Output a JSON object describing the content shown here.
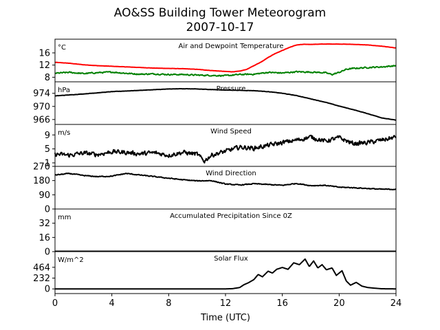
{
  "chart_data": {
    "type": "line",
    "title": "AO&SS Building Tower Meteorogram",
    "subtitle": "2007-10-17",
    "xlabel": "Time (UTC)",
    "xlim": [
      0,
      24
    ],
    "xticks": [
      0,
      4,
      8,
      12,
      16,
      20,
      24
    ],
    "panels": [
      {
        "name": "temperature",
        "title": "Air and Dewpoint Temperature",
        "unit": "°C",
        "ylim": [
          6.5,
          20.5
        ],
        "yticks": [
          8,
          12,
          16
        ],
        "series": [
          {
            "color": "#ff0000",
            "noise": 0.05,
            "x": [
              0,
              1,
              2,
              3,
              4,
              5,
              6,
              7,
              8,
              9,
              10,
              11,
              12,
              12.5,
              13,
              13.5,
              14,
              14.5,
              15,
              15.5,
              16,
              16.5,
              17,
              17.5,
              18,
              19,
              20,
              21,
              22,
              23,
              24
            ],
            "y": [
              12.9,
              12.6,
              12.1,
              11.8,
              11.6,
              11.4,
              11.2,
              11.0,
              10.9,
              10.8,
              10.6,
              10.2,
              9.9,
              9.8,
              10.0,
              10.6,
              11.8,
              13.0,
              14.5,
              15.8,
              16.8,
              17.8,
              18.6,
              18.8,
              18.8,
              18.9,
              18.9,
              18.8,
              18.6,
              18.2,
              17.6
            ]
          },
          {
            "color": "#008000",
            "noise": 0.3,
            "x": [
              0,
              1,
              2,
              3,
              4,
              5,
              6,
              7,
              8,
              9,
              10,
              11,
              12,
              13,
              14,
              15,
              16,
              17,
              18,
              19,
              19.5,
              20,
              20.5,
              21,
              22,
              23,
              24
            ],
            "y": [
              9.3,
              9.6,
              9.2,
              9.5,
              9.7,
              9.3,
              9.0,
              9.1,
              8.9,
              8.9,
              8.7,
              8.6,
              8.5,
              8.9,
              9.0,
              9.6,
              9.4,
              9.8,
              9.7,
              9.5,
              8.9,
              9.6,
              10.6,
              10.9,
              11.2,
              11.4,
              11.8
            ]
          }
        ]
      },
      {
        "name": "pressure",
        "title": "Pressure",
        "unit": "hPa",
        "ylim": [
          964.5,
          977.5
        ],
        "yticks": [
          966,
          970,
          974
        ],
        "series": [
          {
            "color": "#000000",
            "noise": 0.06,
            "x": [
              0,
              2,
              4,
              6,
              8,
              9,
              10,
              12,
              13,
              14,
              15,
              16,
              17,
              18,
              19,
              20,
              21,
              22,
              23,
              24
            ],
            "y": [
              973.2,
              973.8,
              974.5,
              974.9,
              975.3,
              975.4,
              975.3,
              975.0,
              974.9,
              974.8,
              974.5,
              974.0,
              973.3,
              972.3,
              971.3,
              970.1,
              969.0,
              967.8,
              966.5,
              965.8
            ]
          }
        ]
      },
      {
        "name": "wind_speed",
        "title": "Wind Speed",
        "unit": "m/s",
        "ylim": [
          0,
          12
        ],
        "yticks": [
          1,
          5,
          9
        ],
        "series": [
          {
            "color": "#000000",
            "noise": 0.9,
            "x": [
              0,
              1,
              2,
              3,
              4,
              5,
              6,
              7,
              8,
              9,
              10,
              10.5,
              11,
              12,
              13,
              14,
              15,
              16,
              17,
              18,
              19,
              20,
              21,
              22,
              23,
              24
            ],
            "y": [
              3.5,
              3.2,
              3.8,
              3.4,
              4.2,
              4.0,
              3.6,
              3.9,
              3.2,
              4.0,
              3.5,
              1.5,
              3.2,
              4.3,
              5.5,
              5.2,
              6.0,
              6.8,
              7.5,
              8.4,
              7.2,
              8.2,
              6.5,
              6.8,
              7.5,
              8.4
            ]
          }
        ]
      },
      {
        "name": "wind_direction",
        "title": "Wind Direction",
        "unit": "",
        "ylim": [
          0,
          270
        ],
        "yticks": [
          0,
          90,
          180,
          270
        ],
        "series": [
          {
            "color": "#000000",
            "noise": 4,
            "x": [
              0,
              1,
              2,
              3,
              4,
              5,
              6,
              7,
              8,
              9,
              10,
              11,
              12,
              13,
              14,
              15,
              16,
              17,
              18,
              19,
              20,
              21,
              22,
              23,
              24
            ],
            "y": [
              215,
              225,
              212,
              205,
              208,
              225,
              215,
              205,
              195,
              185,
              178,
              180,
              158,
              152,
              160,
              155,
              150,
              162,
              148,
              150,
              138,
              135,
              130,
              125,
              125
            ]
          }
        ]
      },
      {
        "name": "precipitation",
        "title": "Accumulated Precipitation Since 0Z",
        "unit": "mm",
        "ylim": [
          0,
          48
        ],
        "yticks": [
          0,
          16,
          32
        ],
        "series": [
          {
            "color": "#000000",
            "noise": 0,
            "x": [
              0,
              24
            ],
            "y": [
              0,
              0
            ]
          }
        ]
      },
      {
        "name": "solar_flux",
        "title": "Solar Flux",
        "unit": "W/m^2",
        "ylim": [
          -100,
          800
        ],
        "yticks": [
          0,
          232,
          464
        ],
        "series": [
          {
            "color": "#000000",
            "noise": 0,
            "x": [
              0,
              12,
              12.5,
              13,
              13.3,
              13.6,
              14,
              14.3,
              14.6,
              15,
              15.3,
              15.6,
              16,
              16.4,
              16.8,
              17.2,
              17.6,
              17.9,
              18.2,
              18.5,
              18.8,
              19.1,
              19.5,
              19.8,
              20.2,
              20.5,
              20.8,
              21.2,
              21.6,
              22,
              22.5,
              23,
              24
            ],
            "y": [
              0,
              0,
              5,
              30,
              90,
              130,
              200,
              310,
              260,
              380,
              340,
              420,
              460,
              420,
              560,
              520,
              640,
              480,
              600,
              450,
              520,
              410,
              450,
              290,
              390,
              170,
              80,
              140,
              60,
              30,
              15,
              3,
              0
            ]
          }
        ]
      }
    ]
  }
}
